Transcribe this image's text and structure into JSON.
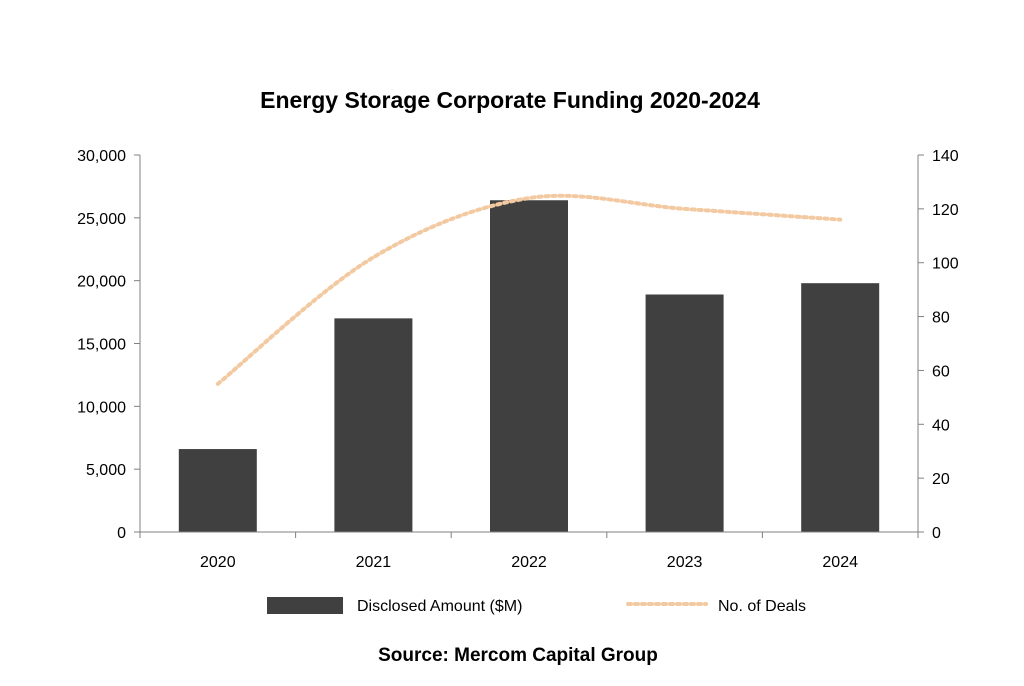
{
  "chart_data": {
    "type": "bar",
    "title": "Energy Storage Corporate Funding 2020-2024",
    "categories": [
      "2020",
      "2021",
      "2022",
      "2023",
      "2024"
    ],
    "series": [
      {
        "name": "Disclosed Amount ($M)",
        "type": "bar",
        "axis": "left",
        "color": "#404040",
        "values": [
          6600,
          17000,
          26400,
          18900,
          19800
        ]
      },
      {
        "name": "No. of Deals",
        "type": "line",
        "style": "dotted",
        "axis": "right",
        "color": "#f2c9a0",
        "values": [
          55,
          102,
          124,
          120,
          116
        ]
      }
    ],
    "y_left": {
      "min": 0,
      "max": 30000,
      "ticks": [
        "0",
        "5,000",
        "10,000",
        "15,000",
        "20,000",
        "25,000",
        "30,000"
      ]
    },
    "y_right": {
      "min": 0,
      "max": 140,
      "ticks": [
        "0",
        "20",
        "40",
        "60",
        "80",
        "100",
        "120",
        "140"
      ]
    },
    "legend_position": "bottom",
    "grid": false,
    "source": "Source: Mercom Capital Group"
  }
}
